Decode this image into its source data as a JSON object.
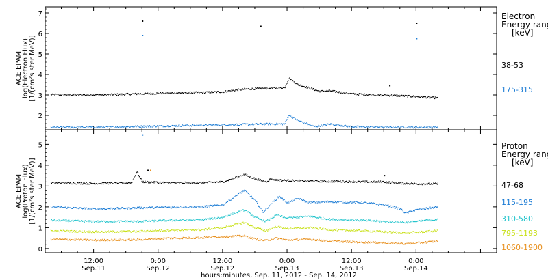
{
  "xaxis": {
    "tick_labels": [
      {
        "time": "12:00",
        "date": "Sep.11",
        "hours": 12
      },
      {
        "time": "0:00",
        "date": "Sep.12",
        "hours": 24
      },
      {
        "time": "12:00",
        "date": "Sep.12",
        "hours": 36
      },
      {
        "time": "0:00",
        "date": "Sep.13",
        "hours": 48
      },
      {
        "time": "12:00",
        "date": "Sep.13",
        "hours": 60
      },
      {
        "time": "0:00",
        "date": "Sep.14",
        "hours": 72
      }
    ],
    "title": "hours:minutes, Sep. 11, 2012 - Sep. 14, 2012",
    "range_hours": [
      3,
      87
    ],
    "data_end_hours": 76
  },
  "chart_data": [
    {
      "type": "scatter",
      "panel": "electron",
      "ylabel_lines": [
        "ACE EPAM",
        "log(Electron Flux)",
        "[1/(cm²s ster MeV)]"
      ],
      "ylim": [
        1.3,
        7.3
      ],
      "yticks": [
        2,
        3,
        4,
        5,
        6,
        7
      ],
      "legend_title_lines": [
        "Electron",
        "Energy ranges",
        "[keV]"
      ],
      "series": [
        {
          "name": "38-53",
          "color": "#000000",
          "points": [
            [
              4,
              3.02
            ],
            [
              10,
              3.0
            ],
            [
              16,
              3.02
            ],
            [
              20,
              3.05
            ],
            [
              24,
              3.08
            ],
            [
              28,
              3.1
            ],
            [
              32,
              3.12
            ],
            [
              36,
              3.15
            ],
            [
              38,
              3.22
            ],
            [
              40,
              3.28
            ],
            [
              44,
              3.32
            ],
            [
              47.5,
              3.35
            ],
            [
              48.3,
              3.82
            ],
            [
              50,
              3.5
            ],
            [
              54,
              3.18
            ],
            [
              56,
              3.2
            ],
            [
              60,
              3.05
            ],
            [
              64,
              3.0
            ],
            [
              68,
              2.97
            ],
            [
              72,
              2.92
            ],
            [
              76,
              2.85
            ]
          ],
          "spikes": [
            [
              21,
              6.6
            ],
            [
              43,
              6.35
            ],
            [
              67,
              3.45
            ],
            [
              72,
              6.5
            ]
          ]
        },
        {
          "name": "175-315",
          "color": "#1a7bd4",
          "points": [
            [
              4,
              1.42
            ],
            [
              10,
              1.42
            ],
            [
              16,
              1.44
            ],
            [
              20,
              1.46
            ],
            [
              24,
              1.48
            ],
            [
              28,
              1.5
            ],
            [
              32,
              1.52
            ],
            [
              36,
              1.54
            ],
            [
              40,
              1.56
            ],
            [
              44,
              1.58
            ],
            [
              47.5,
              1.58
            ],
            [
              48.3,
              2.02
            ],
            [
              50,
              1.75
            ],
            [
              53,
              1.45
            ],
            [
              56,
              1.58
            ],
            [
              60,
              1.45
            ],
            [
              64,
              1.44
            ],
            [
              68,
              1.43
            ],
            [
              72,
              1.42
            ],
            [
              76,
              1.42
            ]
          ],
          "spikes": [
            [
              21,
              5.9
            ],
            [
              72,
              5.75
            ]
          ]
        }
      ]
    },
    {
      "type": "scatter",
      "panel": "proton",
      "ylabel_lines": [
        "ACE EPAM",
        "log(Proton Flux)",
        "[1/(cm²s ster MeV)]"
      ],
      "ylim": [
        -0.2,
        5.7
      ],
      "yticks": [
        0,
        1,
        2,
        3,
        4,
        5
      ],
      "legend_title_lines": [
        "Proton",
        "Energy ranges",
        "[keV]"
      ],
      "series": [
        {
          "name": "47-68",
          "color": "#000000",
          "points": [
            [
              4,
              3.15
            ],
            [
              12,
              3.12
            ],
            [
              19,
              3.15
            ],
            [
              20,
              3.7
            ],
            [
              21,
              3.2
            ],
            [
              26,
              3.15
            ],
            [
              32,
              3.15
            ],
            [
              36,
              3.2
            ],
            [
              40,
              3.55
            ],
            [
              42,
              3.35
            ],
            [
              44,
              3.2
            ],
            [
              45,
              3.35
            ],
            [
              46,
              3.28
            ],
            [
              50,
              3.25
            ],
            [
              56,
              3.22
            ],
            [
              62,
              3.2
            ],
            [
              66,
              3.2
            ],
            [
              68,
              3.15
            ],
            [
              72,
              3.1
            ],
            [
              76,
              3.1
            ]
          ],
          "spikes": [
            [
              22,
              3.75
            ],
            [
              66,
              3.5
            ]
          ]
        },
        {
          "name": "115-195",
          "color": "#1a7bd4",
          "points": [
            [
              4,
              2.0
            ],
            [
              12,
              1.9
            ],
            [
              20,
              1.95
            ],
            [
              26,
              1.98
            ],
            [
              32,
              2.0
            ],
            [
              36,
              2.1
            ],
            [
              40,
              2.8
            ],
            [
              42,
              2.3
            ],
            [
              43.5,
              1.75
            ],
            [
              45,
              2.15
            ],
            [
              46.5,
              2.5
            ],
            [
              48,
              2.2
            ],
            [
              50,
              2.4
            ],
            [
              52,
              2.2
            ],
            [
              56,
              2.25
            ],
            [
              62,
              2.2
            ],
            [
              66,
              2.1
            ],
            [
              69,
              1.9
            ],
            [
              70,
              1.7
            ],
            [
              72,
              1.85
            ],
            [
              76,
              2.0
            ]
          ],
          "spikes": [
            [
              21,
              5.45
            ]
          ]
        },
        {
          "name": "310-580",
          "color": "#22c4cc",
          "points": [
            [
              4,
              1.35
            ],
            [
              12,
              1.3
            ],
            [
              20,
              1.3
            ],
            [
              26,
              1.35
            ],
            [
              32,
              1.38
            ],
            [
              36,
              1.5
            ],
            [
              40,
              1.85
            ],
            [
              42,
              1.5
            ],
            [
              44,
              1.3
            ],
            [
              46,
              1.6
            ],
            [
              48,
              1.45
            ],
            [
              52,
              1.55
            ],
            [
              56,
              1.4
            ],
            [
              62,
              1.35
            ],
            [
              66,
              1.3
            ],
            [
              70,
              1.25
            ],
            [
              76,
              1.4
            ]
          ],
          "spikes": []
        },
        {
          "name": "795-1193",
          "color": "#c8e016",
          "points": [
            [
              4,
              0.85
            ],
            [
              12,
              0.8
            ],
            [
              20,
              0.82
            ],
            [
              26,
              0.88
            ],
            [
              32,
              0.9
            ],
            [
              36,
              1.0
            ],
            [
              40,
              1.25
            ],
            [
              42,
              1.0
            ],
            [
              44,
              0.85
            ],
            [
              46,
              1.05
            ],
            [
              48,
              0.95
            ],
            [
              52,
              1.0
            ],
            [
              56,
              0.9
            ],
            [
              62,
              0.85
            ],
            [
              66,
              0.8
            ],
            [
              70,
              0.75
            ],
            [
              76,
              0.85
            ]
          ],
          "spikes": []
        },
        {
          "name": "1060-1900",
          "color": "#e8901e",
          "points": [
            [
              4,
              0.45
            ],
            [
              12,
              0.4
            ],
            [
              20,
              0.42
            ],
            [
              26,
              0.5
            ],
            [
              32,
              0.52
            ],
            [
              36,
              0.58
            ],
            [
              40,
              0.6
            ],
            [
              42,
              0.45
            ],
            [
              44,
              0.38
            ],
            [
              46,
              0.5
            ],
            [
              48,
              0.4
            ],
            [
              52,
              0.45
            ],
            [
              56,
              0.35
            ],
            [
              62,
              0.3
            ],
            [
              66,
              0.28
            ],
            [
              70,
              0.22
            ],
            [
              76,
              0.35
            ]
          ],
          "spikes": [
            [
              22.5,
              3.75
            ]
          ]
        }
      ]
    }
  ]
}
